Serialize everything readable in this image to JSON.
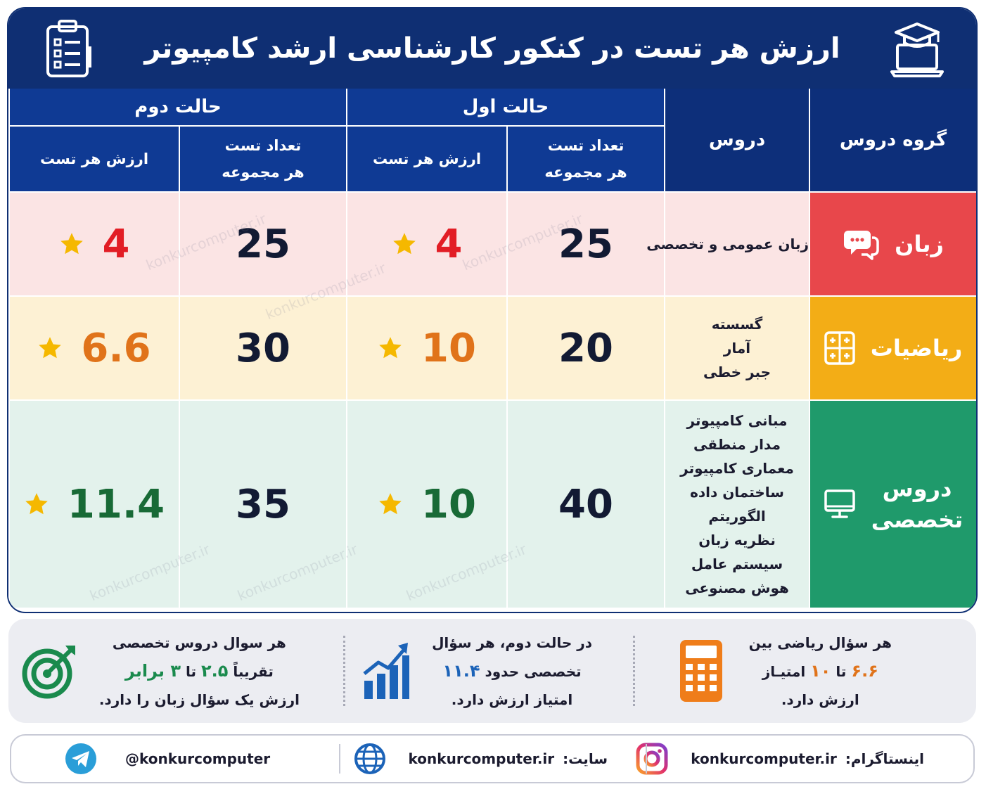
{
  "title": "ارزش هر تست در کنکور کارشناسی ارشد کامپیوتر",
  "icons": {
    "title_right": "graduation-laptop-icon",
    "title_left": "clipboard-checklist-icon"
  },
  "table": {
    "headers": {
      "group": "گروه دروس",
      "courses": "دروس",
      "case1": "حالت اول",
      "case2": "حالت دوم",
      "count_line1": "تعداد تست",
      "count_line2": "هر مجموعه",
      "value": "ارزش هر تست"
    },
    "rows": [
      {
        "group": "زبان",
        "group_icon": "chat-bubbles-icon",
        "courses": [
          "زبان عمومی و تخصصی"
        ],
        "case1_count": "25",
        "case1_value": "4",
        "case2_count": "25",
        "case2_value": "4",
        "value_color": "#e21d25"
      },
      {
        "group": "ریاضیات",
        "group_icon": "calculator-grid-icon",
        "courses": [
          "گسسته",
          "آمار",
          "جبر خطی"
        ],
        "case1_count": "20",
        "case1_value": "10",
        "case2_count": "30",
        "case2_value": "6.6",
        "value_color": "#e0731a"
      },
      {
        "group_line1": "دروس",
        "group_line2": "تخصصی",
        "group_icon": "desktop-monitor-icon",
        "courses": [
          "مبانی کامپیوتر",
          "مدار منطقی",
          "معماری کامپیوتر",
          "ساختمان داده",
          "الگوریتم",
          "نظریه زبان",
          "سیستم عامل",
          "هوش مصنوعی"
        ],
        "case1_count": "40",
        "case1_value": "10",
        "case2_count": "35",
        "case2_value": "11.4",
        "value_color": "#186a36"
      }
    ],
    "watermark": "konkurcomputer.ir"
  },
  "info": [
    {
      "icon": "calculator-icon",
      "line1": "هر سؤال ریاضی بین",
      "line2_a": "۶.۶",
      "line2_b": "تا",
      "line2_c": "۱۰",
      "line2_d": "امتیـاز",
      "line3": "ارزش دارد."
    },
    {
      "icon": "bar-chart-growth-icon",
      "line1": "در حالت دوم، هر سؤال",
      "line2_a": "تخصصی حدود",
      "line2_b": "۱۱.۴",
      "line3": "امتیاز ارزش دارد."
    },
    {
      "icon": "target-arrow-icon",
      "line1": "هر سوال دروس تخصصی",
      "line2_a": "تقریباً",
      "line2_b": "۲.۵",
      "line2_c": "تا",
      "line2_d": "۳ برابر",
      "line3": "ارزش یک سؤال زبان را دارد."
    }
  ],
  "footer": {
    "instagram_label": "اینستاگرام:",
    "instagram_value": "konkurcomputer.ir",
    "site_label": "سایت:",
    "site_value": "konkurcomputer.ir",
    "telegram_value": "@konkurcomputer"
  },
  "colors": {
    "navy": "#0f2f73",
    "header_blue": "#0f3a94",
    "lang": "#e8474b",
    "math": "#f3ad16",
    "spec": "#1f9a6b",
    "star": "#f5b800"
  }
}
